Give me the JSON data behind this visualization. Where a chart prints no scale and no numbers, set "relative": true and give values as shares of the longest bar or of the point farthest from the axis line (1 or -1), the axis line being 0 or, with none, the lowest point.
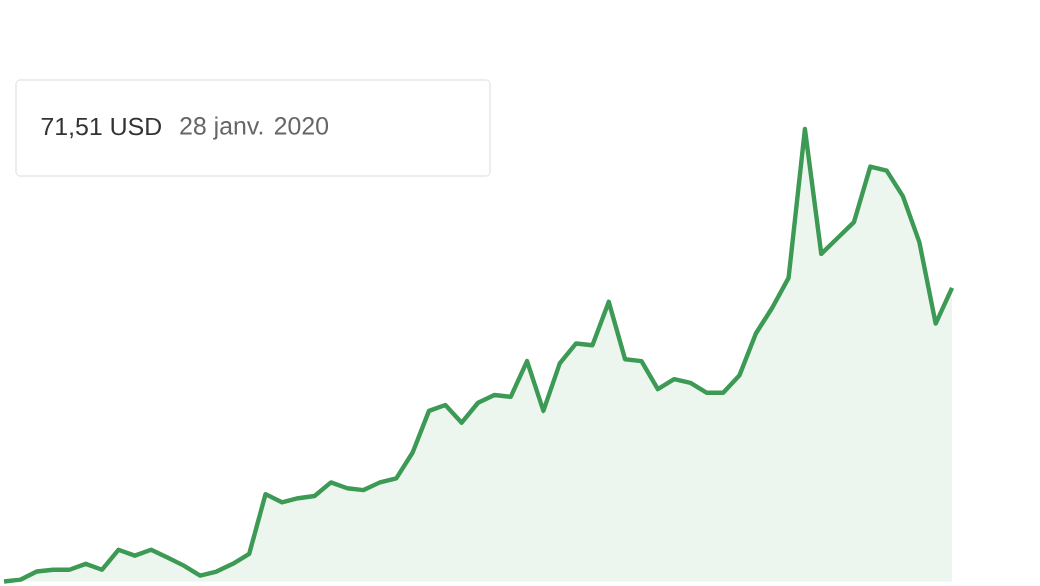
{
  "chart_data": {
    "type": "area",
    "relative": true,
    "categories": [
      null,
      null,
      null,
      null,
      null,
      null,
      null,
      null,
      null,
      null,
      null,
      null,
      null,
      null,
      null,
      null,
      null,
      null,
      null,
      null,
      null,
      null,
      null,
      null,
      null,
      null,
      null,
      null,
      null,
      null,
      null,
      null,
      null,
      null,
      null,
      null,
      null,
      null,
      null,
      null,
      null,
      null,
      null,
      null,
      null,
      null,
      null,
      null,
      null,
      null,
      null,
      null,
      null,
      null,
      null,
      null,
      null,
      null,
      null
    ],
    "series": [
      {
        "color": "#3d9a55",
        "values": [
          0,
          0.004,
          0.022,
          0.026,
          0.026,
          0.039,
          0.026,
          0.07,
          0.057,
          0.07,
          0.053,
          0.035,
          0.013,
          0.022,
          0.039,
          0.061,
          0.193,
          0.175,
          0.184,
          0.189,
          0.219,
          0.206,
          0.202,
          0.219,
          0.228,
          0.285,
          0.377,
          0.39,
          0.351,
          0.395,
          0.412,
          0.408,
          0.487,
          0.377,
          0.482,
          0.526,
          0.522,
          0.618,
          0.491,
          0.487,
          0.425,
          0.447,
          0.439,
          0.417,
          0.417,
          0.456,
          0.548,
          0.605,
          0.671,
          1,
          0.724,
          0.759,
          0.794,
          0.917,
          0.908,
          0.851,
          0.75,
          0.57,
          0.649
        ]
      }
    ],
    "annotations": [
      "71,51 USD",
      "28 janv. 2020"
    ]
  }
}
